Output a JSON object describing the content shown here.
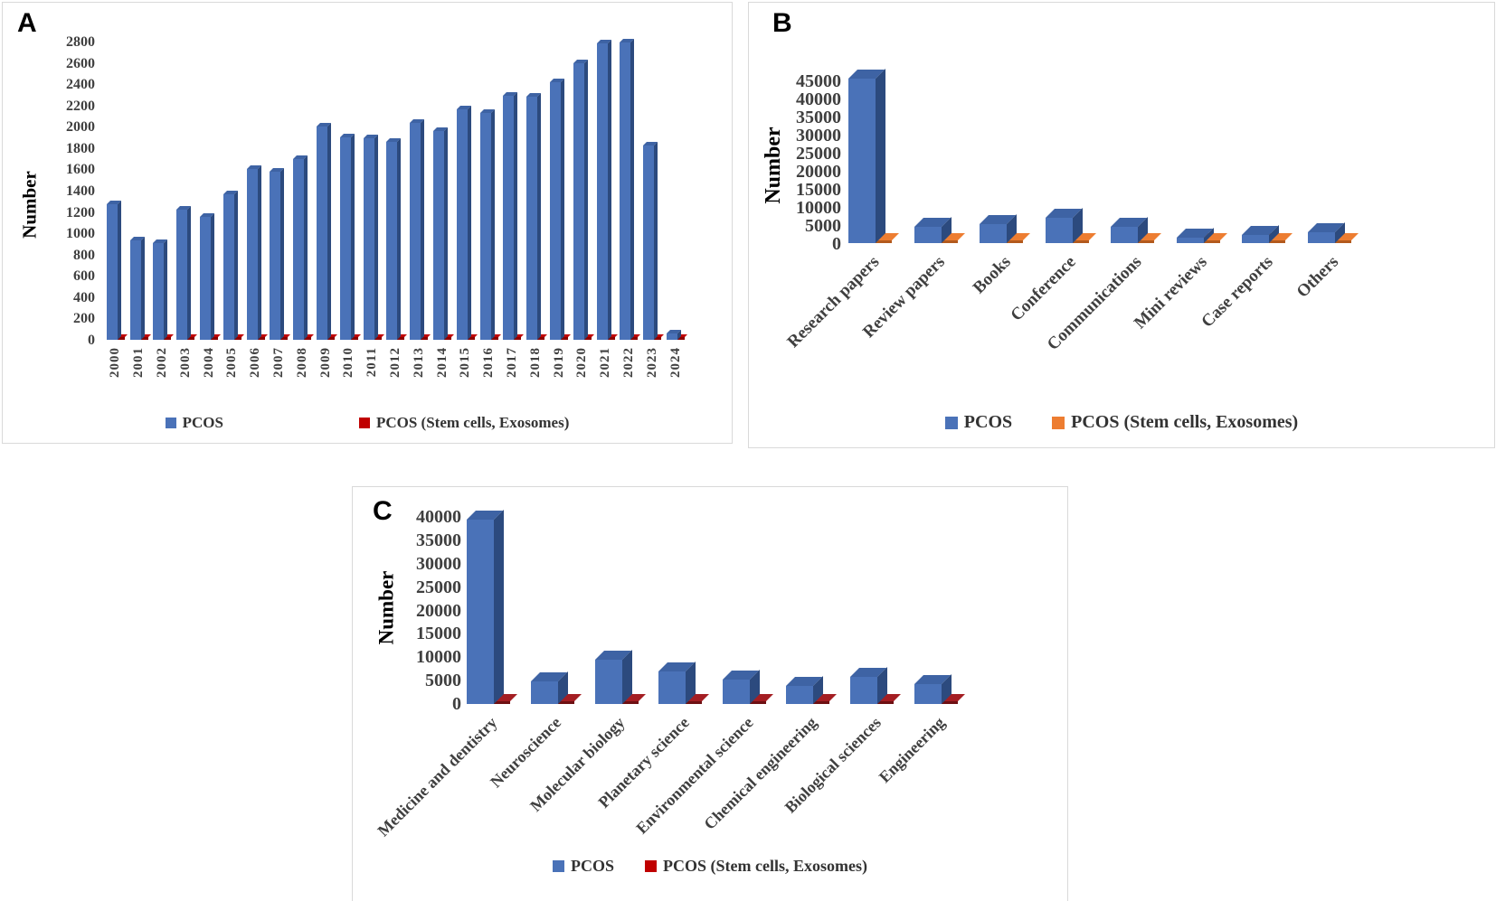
{
  "figure": {
    "background": "#FFFFFF",
    "panel_border": "#D9D9D9"
  },
  "chart_data": [
    {
      "id": "A",
      "panel_label": "A",
      "type": "bar",
      "title": "",
      "xlabel": "",
      "ylabel": "Number",
      "ylim": [
        0,
        2800
      ],
      "ytick_step": 200,
      "grid": false,
      "legend_position": "bottom",
      "ytick_labels": [
        "2800",
        "2600",
        "2400",
        "2200",
        "2000",
        "1800",
        "1600",
        "1400",
        "1200",
        "1000",
        "800",
        "600",
        "400",
        "200",
        "0"
      ],
      "categories": [
        "2000",
        "2001",
        "2002",
        "2003",
        "2004",
        "2005",
        "2006",
        "2007",
        "2008",
        "2009",
        "2010",
        "2011",
        "2012",
        "2013",
        "2014",
        "2015",
        "2016",
        "2017",
        "2018",
        "2019",
        "2020",
        "2021",
        "2022",
        "2023",
        "2024"
      ],
      "series": [
        {
          "name": "PCOS",
          "color": "#4A72B8",
          "color_top": "#3E63A4",
          "color_side": "#2C4A7E",
          "values": [
            1270,
            930,
            910,
            1220,
            1150,
            1370,
            1600,
            1580,
            1700,
            2000,
            1900,
            1890,
            1860,
            2040,
            1960,
            2160,
            2130,
            2290,
            2280,
            2420,
            2600,
            2780,
            2790,
            1820,
            60
          ]
        },
        {
          "name": "PCOS (Stem cells, Exosomes)",
          "color": "#C00000",
          "color_top": "#C00000",
          "color_side": "#8B0000",
          "values": [
            10,
            10,
            10,
            10,
            10,
            10,
            10,
            10,
            10,
            10,
            12,
            12,
            12,
            12,
            12,
            15,
            15,
            15,
            15,
            25,
            25,
            30,
            35,
            30,
            20
          ]
        }
      ]
    },
    {
      "id": "B",
      "panel_label": "B",
      "type": "bar",
      "title": "",
      "xlabel": "",
      "ylabel": "Number",
      "ylim": [
        0,
        45000
      ],
      "ytick_step": 5000,
      "grid": false,
      "legend_position": "bottom",
      "ytick_labels": [
        "45000",
        "40000",
        "35000",
        "30000",
        "25000",
        "20000",
        "15000",
        "10000",
        "5000",
        "0"
      ],
      "categories": [
        "Research papers",
        "Review papers",
        "Books",
        "Conference",
        "Communications",
        "Mini reviews",
        "Case reports",
        "Others"
      ],
      "series": [
        {
          "name": "PCOS",
          "color": "#4A72B8",
          "color_top": "#3E63A4",
          "color_side": "#2C4A7E",
          "values": [
            45500,
            4600,
            5200,
            7000,
            4400,
            1500,
            2300,
            3000
          ]
        },
        {
          "name": "PCOS (Stem cells, Exosomes)",
          "color": "#ED7D31",
          "color_top": "#ED7D31",
          "color_side": "#B35A1D",
          "values": [
            200,
            200,
            200,
            200,
            200,
            150,
            150,
            150
          ]
        }
      ]
    },
    {
      "id": "C",
      "panel_label": "C",
      "type": "bar",
      "title": "",
      "xlabel": "",
      "ylabel": "Number",
      "ylim": [
        0,
        40000
      ],
      "ytick_step": 5000,
      "grid": false,
      "legend_position": "bottom",
      "ytick_labels": [
        "40000",
        "35000",
        "30000",
        "25000",
        "20000",
        "15000",
        "10000",
        "5000",
        "0"
      ],
      "categories": [
        "Medicine and dentistry",
        "Neuroscience",
        "Molecular biology",
        "Planetary science",
        "Environmental science",
        "Chemical engineering",
        "Biological sciences",
        "Engineering"
      ],
      "series": [
        {
          "name": "PCOS",
          "color": "#4A72B8",
          "color_top": "#3E63A4",
          "color_side": "#2C4A7E",
          "values": [
            39500,
            4900,
            9500,
            7000,
            5200,
            3800,
            5800,
            4300
          ]
        },
        {
          "name": "PCOS (Stem cells, Exosomes)",
          "color": "#C00000",
          "color_top": "#A41E23",
          "color_side": "#6E1013",
          "values": [
            250,
            250,
            250,
            250,
            250,
            250,
            250,
            250
          ]
        }
      ]
    }
  ]
}
